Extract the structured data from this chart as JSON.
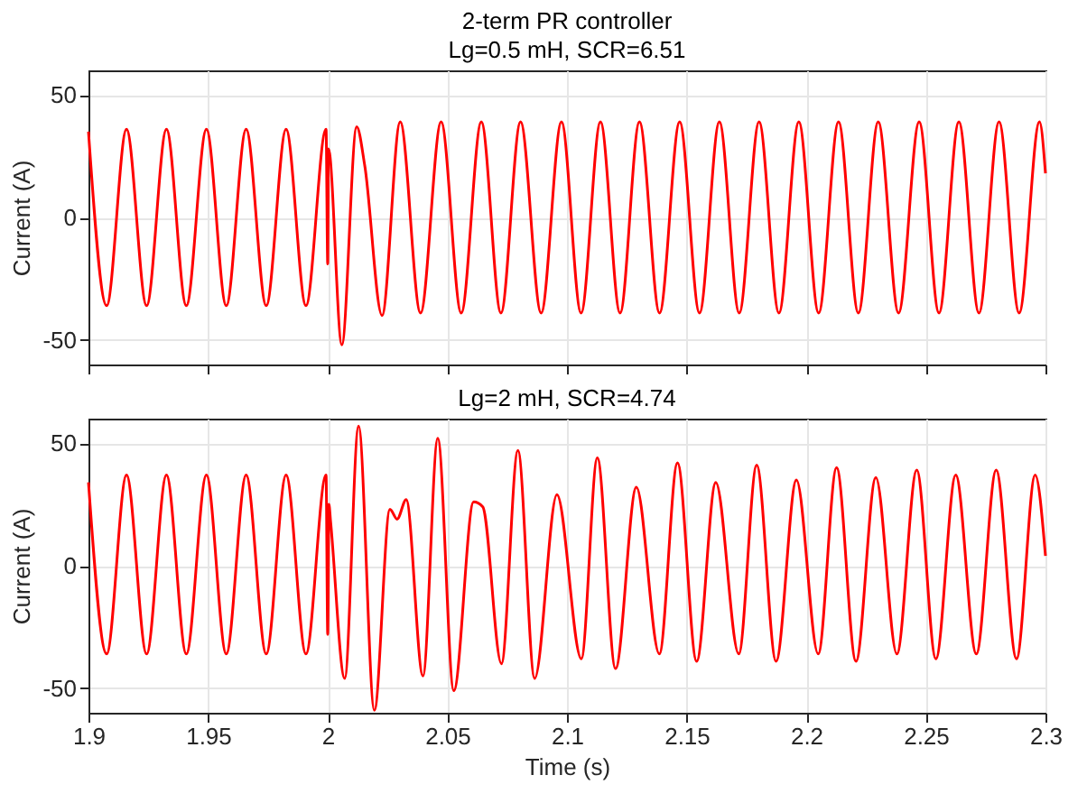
{
  "chart_data": [
    {
      "type": "line",
      "title": "2-term PR controller",
      "subtitle": "Lg=0.5 mH, SCR=6.51",
      "ylabel": "Current (A)",
      "xlim": [
        1.9,
        2.3
      ],
      "xticks": [
        1.9,
        1.95,
        2,
        2.05,
        2.1,
        2.15,
        2.2,
        2.25,
        2.3
      ],
      "ylim": [
        -60,
        60
      ],
      "yticks": [
        -50,
        0,
        50
      ],
      "grid": true,
      "tick_labels": "y",
      "line_style": "solid",
      "series": [
        {
          "color": "#ff0000",
          "x": [
            1.9,
            1.9076,
            1.9159,
            1.9243,
            1.9326,
            1.9409,
            1.9493,
            1.9576,
            1.9659,
            1.9743,
            1.9826,
            1.9909,
            1.9993,
            2.0,
            2.0003,
            2.0059,
            2.0121,
            2.0155,
            2.0227,
            2.0303,
            2.0388,
            2.0474,
            2.0558,
            2.0642,
            2.0724,
            2.0806,
            2.0892,
            2.0977,
            2.1059,
            2.114,
            2.1222,
            2.1303,
            2.1387,
            2.1471,
            2.1554,
            2.1637,
            2.172,
            2.1803,
            2.1886,
            2.1969,
            2.2052,
            2.2135,
            2.2218,
            2.2301,
            2.2386,
            2.2472,
            2.2555,
            2.2638,
            2.2722,
            2.2806,
            2.289,
            2.2975,
            2.3
          ],
          "values": [
            35,
            -36,
            36,
            -36,
            36,
            -36,
            36,
            -36,
            36,
            -36,
            36,
            -36,
            36,
            -19,
            28,
            -52,
            37,
            21,
            -40,
            39,
            -39,
            39,
            -39,
            39,
            -39,
            39,
            -39,
            39,
            -39,
            39,
            -39,
            39,
            -39,
            39,
            -39,
            39,
            -39,
            39,
            -39,
            39,
            -39,
            39,
            -39,
            39,
            -39,
            39,
            -39,
            39,
            -39,
            39,
            -39,
            39,
            18
          ]
        }
      ]
    },
    {
      "type": "line",
      "title": "Lg=2 mH, SCR=4.74",
      "xlabel": "Time (s)",
      "ylabel": "Current (A)",
      "xlim": [
        1.9,
        2.3
      ],
      "xticks": [
        1.9,
        1.95,
        2,
        2.05,
        2.1,
        2.15,
        2.2,
        2.25,
        2.3
      ],
      "ylim": [
        -60,
        60
      ],
      "yticks": [
        -50,
        0,
        50
      ],
      "grid": true,
      "line_style": "solid",
      "series": [
        {
          "color": "#ff0000",
          "x": [
            1.9,
            1.9076,
            1.9159,
            1.9243,
            1.9326,
            1.9409,
            1.9493,
            1.9576,
            1.9659,
            1.9743,
            1.9826,
            1.9909,
            1.9993,
            2.0,
            2.0005,
            2.0012,
            2.0071,
            2.0129,
            2.0195,
            2.026,
            2.029,
            2.0328,
            2.0398,
            2.046,
            2.0527,
            2.061,
            2.0648,
            2.0726,
            2.0795,
            2.0865,
            2.0958,
            2.106,
            2.1127,
            2.1203,
            2.129,
            2.1386,
            2.1462,
            2.1542,
            2.1622,
            2.1718,
            2.1793,
            2.1874,
            2.1959,
            2.205,
            2.2127,
            2.2208,
            2.2291,
            2.2379,
            2.2462,
            2.2542,
            2.2625,
            2.2711,
            2.2794,
            2.2879,
            2.2957,
            2.3
          ],
          "values": [
            34,
            -36,
            37,
            -36,
            37,
            -36,
            37,
            -36,
            37,
            -36,
            37,
            -36,
            37,
            -28,
            25,
            18,
            -46,
            57,
            -59,
            23,
            19,
            27,
            -45,
            52,
            -51,
            26,
            24,
            -40,
            47,
            -46,
            29,
            -38,
            44,
            -42,
            32,
            -36,
            42,
            -39,
            34,
            -36,
            41,
            -39,
            35,
            -36,
            40,
            -39,
            36,
            -36,
            39,
            -38,
            37,
            -36,
            39,
            -38,
            37,
            4
          ]
        }
      ]
    }
  ]
}
